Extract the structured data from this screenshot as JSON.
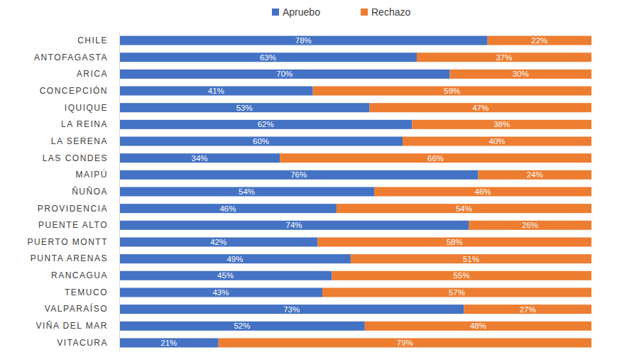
{
  "chart_data": {
    "type": "bar",
    "orientation": "horizontal",
    "stacked": true,
    "data_labels": true,
    "tick_labels": "y",
    "legend": "top",
    "xlim": [
      0,
      100
    ],
    "categories": [
      "CHILE",
      "ANTOFAGASTA",
      "ARICA",
      "CONCEPCIÓN",
      "IQUIQUE",
      "LA REINA",
      "LA SERENA",
      "LAS CONDES",
      "MAIPÚ",
      "ÑUÑOA",
      "PROVIDENCIA",
      "PUENTE ALTO",
      "PUERTO MONTT",
      "PUNTA ARENAS",
      "RANCAGUA",
      "TEMUCO",
      "VALPARAÍSO",
      "VIÑA DEL MAR",
      "VITACURA"
    ],
    "series": [
      {
        "name": "Apruebo",
        "color": "#4472c4",
        "values": [
          78,
          63,
          70,
          41,
          53,
          62,
          60,
          34,
          76,
          54,
          46,
          74,
          42,
          49,
          45,
          43,
          73,
          52,
          21
        ],
        "value_labels": [
          "78%",
          "63%",
          "70%",
          "41%",
          "53%",
          "62%",
          "60%",
          "34%",
          "76%",
          "54%",
          "46%",
          "74%",
          "42%",
          "49%",
          "45%",
          "43%",
          "73%",
          "52%",
          "21%"
        ]
      },
      {
        "name": "Rechazo",
        "color": "#ed7d31",
        "values": [
          22,
          37,
          30,
          59,
          47,
          38,
          40,
          66,
          24,
          46,
          54,
          26,
          58,
          51,
          55,
          57,
          27,
          48,
          79
        ],
        "value_labels": [
          "22%",
          "37%",
          "30%",
          "59%",
          "47%",
          "38%",
          "40%",
          "66%",
          "24%",
          "46%",
          "54%",
          "26%",
          "58%",
          "51%",
          "55%",
          "57%",
          "27%",
          "48%",
          "79%"
        ]
      }
    ]
  }
}
